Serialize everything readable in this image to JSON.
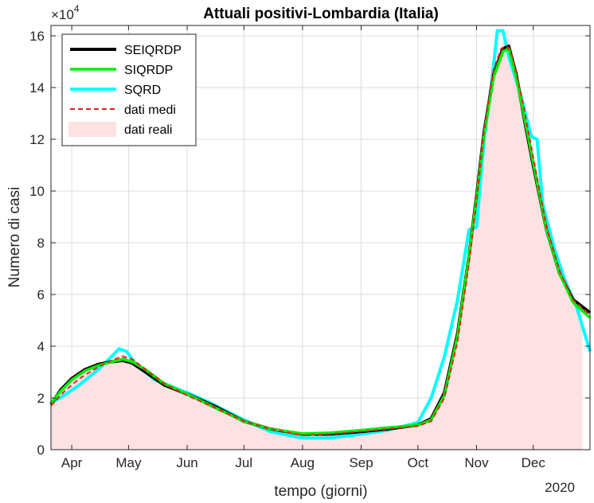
{
  "chart_data": {
    "type": "line",
    "title": "Attuali positivi-Lombardia (Italia)",
    "xlabel": "tempo (giorni)",
    "ylabel": "Numero di casi",
    "year_label": "2020",
    "exponent_label": "×10",
    "exponent_power": "4",
    "x_ticks": [
      {
        "date": "2020-04-01",
        "label": "Apr"
      },
      {
        "date": "2020-05-01",
        "label": "May"
      },
      {
        "date": "2020-06-01",
        "label": "Jun"
      },
      {
        "date": "2020-07-01",
        "label": "Jul"
      },
      {
        "date": "2020-08-01",
        "label": "Aug"
      },
      {
        "date": "2020-09-01",
        "label": "Sep"
      },
      {
        "date": "2020-10-01",
        "label": "Oct"
      },
      {
        "date": "2020-11-01",
        "label": "Nov"
      },
      {
        "date": "2020-12-01",
        "label": "Dec"
      }
    ],
    "y_ticks": [
      0,
      2,
      4,
      6,
      8,
      10,
      12,
      14,
      16
    ],
    "xlim": [
      "2020-03-21",
      "2020-12-31"
    ],
    "ylim": [
      0,
      16.4
    ],
    "y_unit_multiplier": 10000,
    "grid": true,
    "legend_position": "top-left",
    "series": [
      {
        "name": "SEIQRDP",
        "color": "#000000",
        "style": "solid",
        "points": [
          [
            "2020-03-21",
            1.75
          ],
          [
            "2020-03-26",
            2.3
          ],
          [
            "2020-04-01",
            2.75
          ],
          [
            "2020-04-08",
            3.1
          ],
          [
            "2020-04-15",
            3.3
          ],
          [
            "2020-04-22",
            3.4
          ],
          [
            "2020-04-28",
            3.45
          ],
          [
            "2020-05-03",
            3.35
          ],
          [
            "2020-05-10",
            3.0
          ],
          [
            "2020-05-20",
            2.5
          ],
          [
            "2020-06-01",
            2.15
          ],
          [
            "2020-06-15",
            1.7
          ],
          [
            "2020-07-01",
            1.1
          ],
          [
            "2020-07-15",
            0.8
          ],
          [
            "2020-08-01",
            0.6
          ],
          [
            "2020-08-15",
            0.6
          ],
          [
            "2020-09-01",
            0.7
          ],
          [
            "2020-09-15",
            0.8
          ],
          [
            "2020-10-01",
            0.95
          ],
          [
            "2020-10-08",
            1.2
          ],
          [
            "2020-10-15",
            2.2
          ],
          [
            "2020-10-22",
            4.5
          ],
          [
            "2020-10-28",
            7.5
          ],
          [
            "2020-11-01",
            9.8
          ],
          [
            "2020-11-05",
            12.3
          ],
          [
            "2020-11-10",
            14.5
          ],
          [
            "2020-11-15",
            15.5
          ],
          [
            "2020-11-18",
            15.6
          ],
          [
            "2020-11-22",
            14.5
          ],
          [
            "2020-11-27",
            12.5
          ],
          [
            "2020-12-01",
            11.0
          ],
          [
            "2020-12-08",
            8.5
          ],
          [
            "2020-12-15",
            6.8
          ],
          [
            "2020-12-22",
            5.8
          ],
          [
            "2020-12-31",
            5.3
          ]
        ]
      },
      {
        "name": "SIQRDP",
        "color": "#00ee00",
        "style": "solid",
        "points": [
          [
            "2020-03-21",
            1.8
          ],
          [
            "2020-03-26",
            2.25
          ],
          [
            "2020-04-01",
            2.7
          ],
          [
            "2020-04-08",
            3.05
          ],
          [
            "2020-04-15",
            3.25
          ],
          [
            "2020-04-22",
            3.4
          ],
          [
            "2020-04-28",
            3.5
          ],
          [
            "2020-05-03",
            3.4
          ],
          [
            "2020-05-10",
            3.1
          ],
          [
            "2020-05-20",
            2.55
          ],
          [
            "2020-06-01",
            2.15
          ],
          [
            "2020-06-15",
            1.65
          ],
          [
            "2020-07-01",
            1.1
          ],
          [
            "2020-07-15",
            0.8
          ],
          [
            "2020-08-01",
            0.62
          ],
          [
            "2020-08-15",
            0.65
          ],
          [
            "2020-09-01",
            0.75
          ],
          [
            "2020-09-15",
            0.85
          ],
          [
            "2020-10-01",
            0.95
          ],
          [
            "2020-10-08",
            1.15
          ],
          [
            "2020-10-15",
            2.1
          ],
          [
            "2020-10-22",
            4.4
          ],
          [
            "2020-10-28",
            7.5
          ],
          [
            "2020-11-01",
            9.7
          ],
          [
            "2020-11-05",
            12.2
          ],
          [
            "2020-11-10",
            14.4
          ],
          [
            "2020-11-15",
            15.4
          ],
          [
            "2020-11-18",
            15.5
          ],
          [
            "2020-11-22",
            14.4
          ],
          [
            "2020-11-27",
            12.6
          ],
          [
            "2020-12-01",
            11.1
          ],
          [
            "2020-12-08",
            8.5
          ],
          [
            "2020-12-15",
            6.8
          ],
          [
            "2020-12-22",
            5.7
          ],
          [
            "2020-12-31",
            5.1
          ]
        ]
      },
      {
        "name": "SQRD",
        "color": "#00ffff",
        "style": "solid",
        "points": [
          [
            "2020-03-21",
            1.8
          ],
          [
            "2020-03-28",
            2.1
          ],
          [
            "2020-04-05",
            2.5
          ],
          [
            "2020-04-15",
            3.1
          ],
          [
            "2020-04-22",
            3.6
          ],
          [
            "2020-04-26",
            3.9
          ],
          [
            "2020-04-30",
            3.8
          ],
          [
            "2020-05-05",
            3.3
          ],
          [
            "2020-05-15",
            2.7
          ],
          [
            "2020-06-01",
            2.2
          ],
          [
            "2020-06-12",
            1.85
          ],
          [
            "2020-07-01",
            1.15
          ],
          [
            "2020-07-15",
            0.7
          ],
          [
            "2020-08-01",
            0.45
          ],
          [
            "2020-08-15",
            0.45
          ],
          [
            "2020-09-01",
            0.6
          ],
          [
            "2020-09-15",
            0.75
          ],
          [
            "2020-10-01",
            1.05
          ],
          [
            "2020-10-08",
            2.0
          ],
          [
            "2020-10-15",
            3.6
          ],
          [
            "2020-10-22",
            5.8
          ],
          [
            "2020-10-28",
            8.5
          ],
          [
            "2020-11-01",
            8.6
          ],
          [
            "2020-11-05",
            12.0
          ],
          [
            "2020-11-09",
            14.2
          ],
          [
            "2020-11-12",
            16.2
          ],
          [
            "2020-11-15",
            16.2
          ],
          [
            "2020-11-18",
            15.2
          ],
          [
            "2020-11-24",
            13.8
          ],
          [
            "2020-11-30",
            12.1
          ],
          [
            "2020-12-03",
            12.0
          ],
          [
            "2020-12-06",
            9.5
          ],
          [
            "2020-12-12",
            7.8
          ],
          [
            "2020-12-18",
            6.5
          ],
          [
            "2020-12-24",
            5.5
          ],
          [
            "2020-12-31",
            3.8
          ]
        ]
      },
      {
        "name": "dati medi",
        "color": "#e8201a",
        "style": "dashed",
        "points": [
          [
            "2020-03-21",
            1.7
          ],
          [
            "2020-03-28",
            2.25
          ],
          [
            "2020-04-05",
            2.75
          ],
          [
            "2020-04-15",
            3.2
          ],
          [
            "2020-04-22",
            3.45
          ],
          [
            "2020-04-28",
            3.6
          ],
          [
            "2020-05-03",
            3.5
          ],
          [
            "2020-05-10",
            3.1
          ],
          [
            "2020-05-20",
            2.55
          ],
          [
            "2020-06-01",
            2.1
          ],
          [
            "2020-06-15",
            1.65
          ],
          [
            "2020-07-01",
            1.1
          ],
          [
            "2020-07-15",
            0.8
          ],
          [
            "2020-08-01",
            0.55
          ],
          [
            "2020-08-15",
            0.6
          ],
          [
            "2020-09-01",
            0.7
          ],
          [
            "2020-09-15",
            0.8
          ],
          [
            "2020-10-01",
            0.92
          ],
          [
            "2020-10-08",
            1.1
          ],
          [
            "2020-10-15",
            2.0
          ],
          [
            "2020-10-22",
            4.2
          ],
          [
            "2020-10-28",
            7.2
          ],
          [
            "2020-11-01",
            9.6
          ],
          [
            "2020-11-05",
            12.4
          ],
          [
            "2020-11-10",
            14.7
          ],
          [
            "2020-11-14",
            15.5
          ],
          [
            "2020-11-17",
            15.6
          ],
          [
            "2020-11-20",
            15.2
          ],
          [
            "2020-11-25",
            13.6
          ],
          [
            "2020-12-01",
            11.3
          ],
          [
            "2020-12-08",
            8.6
          ],
          [
            "2020-12-15",
            6.9
          ],
          [
            "2020-12-22",
            5.8
          ],
          [
            "2020-12-31",
            5.2
          ]
        ]
      }
    ],
    "area_series": {
      "name": "dati reali",
      "color": "#fde1e3",
      "points": [
        [
          "2020-03-21",
          1.7
        ],
        [
          "2020-03-28",
          2.3
        ],
        [
          "2020-04-05",
          2.8
        ],
        [
          "2020-04-15",
          3.2
        ],
        [
          "2020-04-22",
          3.5
        ],
        [
          "2020-04-28",
          3.7
        ],
        [
          "2020-05-03",
          3.5
        ],
        [
          "2020-05-10",
          3.1
        ],
        [
          "2020-05-20",
          2.5
        ],
        [
          "2020-06-01",
          2.1
        ],
        [
          "2020-06-15",
          1.6
        ],
        [
          "2020-07-01",
          1.1
        ],
        [
          "2020-07-15",
          0.8
        ],
        [
          "2020-08-01",
          0.55
        ],
        [
          "2020-08-15",
          0.6
        ],
        [
          "2020-09-01",
          0.7
        ],
        [
          "2020-09-15",
          0.8
        ],
        [
          "2020-10-01",
          0.9
        ],
        [
          "2020-10-08",
          1.1
        ],
        [
          "2020-10-15",
          2.0
        ],
        [
          "2020-10-22",
          4.2
        ],
        [
          "2020-10-28",
          7.2
        ],
        [
          "2020-11-01",
          9.6
        ],
        [
          "2020-11-05",
          12.4
        ],
        [
          "2020-11-10",
          14.8
        ],
        [
          "2020-11-14",
          15.6
        ],
        [
          "2020-11-17",
          16.3
        ],
        [
          "2020-11-20",
          15.2
        ],
        [
          "2020-11-25",
          13.6
        ],
        [
          "2020-12-01",
          11.3
        ],
        [
          "2020-12-08",
          8.6
        ],
        [
          "2020-12-15",
          6.9
        ],
        [
          "2020-12-22",
          5.8
        ],
        [
          "2020-12-27",
          5.3
        ]
      ]
    }
  }
}
